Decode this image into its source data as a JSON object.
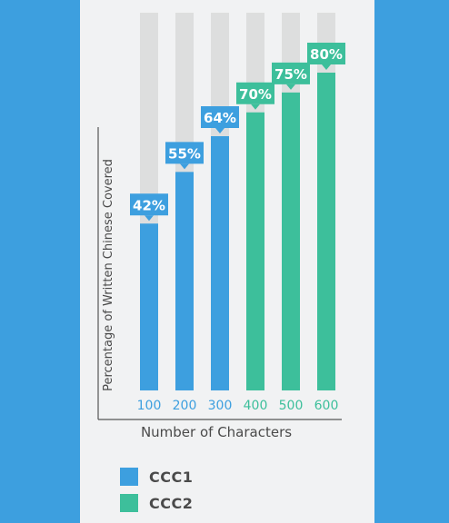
{
  "chart_data": {
    "type": "bar",
    "xlabel": "Number of Characters",
    "ylabel": "Percentage of Written Chinese Covered",
    "categories": [
      "100",
      "200",
      "300",
      "400",
      "500",
      "600"
    ],
    "values": [
      42,
      55,
      64,
      70,
      75,
      80
    ],
    "data_labels": [
      "42%",
      "55%",
      "64%",
      "70%",
      "75%",
      "80%"
    ],
    "series_assignment": [
      "CCC1",
      "CCC1",
      "CCC1",
      "CCC2",
      "CCC2",
      "CCC2"
    ],
    "ylim": [
      0,
      100
    ],
    "grid": false,
    "legend_position": "bottom-left"
  },
  "legend": [
    {
      "label": "CCC1",
      "color": "#3d9fdf"
    },
    {
      "label": "CCC2",
      "color": "#3dbf9b"
    }
  ],
  "colors": {
    "ccc1": "#3d9fdf",
    "ccc2": "#3dbf9b",
    "track": "#dddede",
    "axis": "#555555"
  }
}
